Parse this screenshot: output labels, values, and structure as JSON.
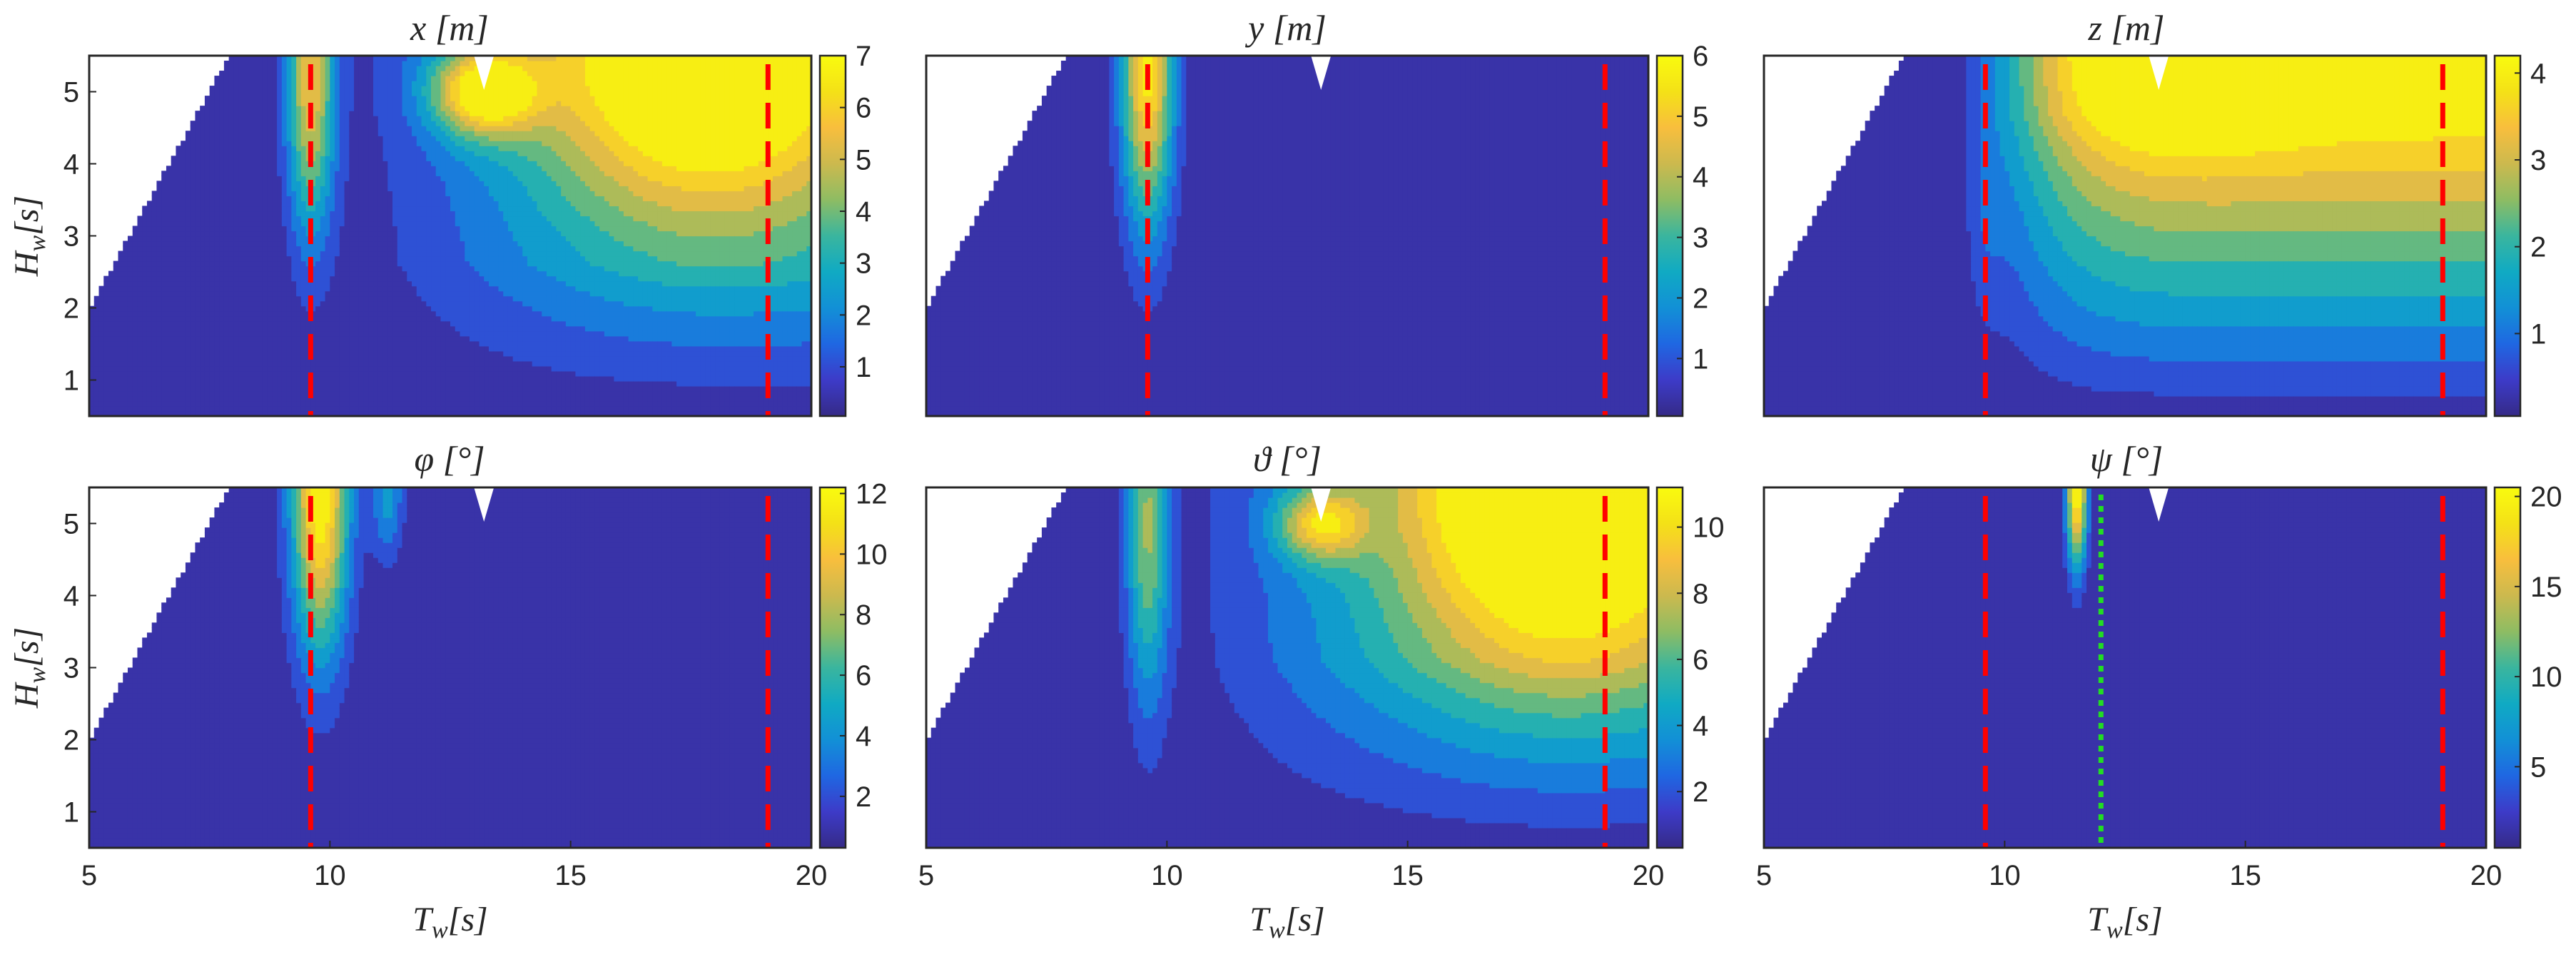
{
  "chart_data": [
    {
      "type": "contour",
      "id": "x",
      "title": "x [m]",
      "ylabel": "H_w[s]",
      "xlabel": "",
      "xlim": [
        5,
        20
      ],
      "ylim": [
        0.5,
        5.5
      ],
      "xticks": [],
      "yticks": [
        "1",
        "2",
        "3",
        "4",
        "5"
      ],
      "colorbar": {
        "min": 0.05,
        "max": 7,
        "ticks": [
          "1",
          "2",
          "3",
          "4",
          "5",
          "6",
          "7"
        ]
      },
      "peaks": [
        {
          "x": 9.6,
          "y": 5.2,
          "value": 5.4,
          "sx": 0.5,
          "sy": 2.2
        },
        {
          "x": 13.2,
          "y": 5.0,
          "value": 5.5,
          "sx": 1.1,
          "sy": 0.6
        },
        {
          "x": 17.8,
          "y": 5.6,
          "value": 7.0,
          "sx": 3.6,
          "sy": 2.3
        }
      ],
      "ramp": {
        "value": 1.8,
        "xgrow": 5.2,
        "ygrow": 1.8
      },
      "dashed_lines": [
        9.6,
        19.1
      ],
      "dotted_lines": []
    },
    {
      "type": "contour",
      "id": "y",
      "title": "y [m]",
      "ylabel": "",
      "xlabel": "",
      "xlim": [
        5,
        20
      ],
      "ylim": [
        0.5,
        5.5
      ],
      "xticks": [],
      "yticks": [],
      "colorbar": {
        "min": 0.05,
        "max": 6,
        "ticks": [
          "1",
          "2",
          "3",
          "4",
          "5",
          "6"
        ]
      },
      "peaks": [
        {
          "x": 9.6,
          "y": 5.4,
          "value": 5.6,
          "sx": 0.55,
          "sy": 2.3
        }
      ],
      "ramp": {
        "value": 0,
        "xgrow": 5.0,
        "ygrow": 2.0
      },
      "dashed_lines": [
        9.6,
        19.1
      ],
      "dotted_lines": []
    },
    {
      "type": "contour",
      "id": "z",
      "title": "z [m]",
      "ylabel": "",
      "xlabel": "",
      "xlim": [
        5,
        20
      ],
      "ylim": [
        0.5,
        5.5
      ],
      "xticks": [],
      "yticks": [],
      "colorbar": {
        "min": 0.05,
        "max": 4.2,
        "ticks": [
          "1",
          "2",
          "3",
          "4"
        ]
      },
      "peaks": [
        {
          "x": 13.5,
          "y": 5.6,
          "value": 1.4,
          "sx": 2.6,
          "sy": 1.2
        },
        {
          "x": 9.6,
          "y": 3.2,
          "value": 0.4,
          "sx": 0.4,
          "sy": 1.5
        }
      ],
      "ramp": {
        "value": 3.1,
        "xgrow": 2.4,
        "ygrow": 3.4
      },
      "dashed_lines": [
        9.6,
        19.1
      ],
      "dotted_lines": []
    },
    {
      "type": "contour",
      "id": "phi",
      "title": "φ [°]",
      "ylabel": "H_w[s]",
      "xlabel": "T_w[s]",
      "xlim": [
        5,
        20
      ],
      "ylim": [
        0.5,
        5.5
      ],
      "xticks": [
        "5",
        "10",
        "15",
        "20"
      ],
      "yticks": [
        "1",
        "2",
        "3",
        "4",
        "5"
      ],
      "colorbar": {
        "min": 0.3,
        "max": 12.2,
        "ticks": [
          "2",
          "4",
          "6",
          "8",
          "10",
          "12"
        ]
      },
      "peaks": [
        {
          "x": 9.8,
          "y": 5.4,
          "value": 11.8,
          "sx": 0.6,
          "sy": 2.2
        },
        {
          "x": 11.2,
          "y": 5.4,
          "value": 4.0,
          "sx": 0.35,
          "sy": 0.9
        }
      ],
      "ramp": {
        "value": 0,
        "xgrow": 5.0,
        "ygrow": 2.0
      },
      "dashed_lines": [
        9.6,
        19.1
      ],
      "dotted_lines": []
    },
    {
      "type": "contour",
      "id": "theta",
      "title": "ϑ [°]",
      "ylabel": "",
      "xlabel": "T_w[s]",
      "xlim": [
        5,
        20
      ],
      "ylim": [
        0.5,
        5.5
      ],
      "xticks": [
        "5",
        "10",
        "15",
        "20"
      ],
      "yticks": [],
      "colorbar": {
        "min": 0.3,
        "max": 11.2,
        "ticks": [
          "2",
          "4",
          "6",
          "8",
          "10"
        ]
      },
      "peaks": [
        {
          "x": 9.6,
          "y": 5.0,
          "value": 6.5,
          "sx": 0.45,
          "sy": 2.5
        },
        {
          "x": 13.2,
          "y": 5.0,
          "value": 6.5,
          "sx": 0.9,
          "sy": 0.5
        },
        {
          "x": 18.2,
          "y": 5.6,
          "value": 11.0,
          "sx": 3.3,
          "sy": 2.6
        }
      ],
      "ramp": {
        "value": 3.5,
        "xgrow": 4.8,
        "ygrow": 2.2
      },
      "dashed_lines": [
        19.1
      ],
      "dotted_lines": []
    },
    {
      "type": "contour",
      "id": "psi",
      "title": "ψ [°]",
      "ylabel": "",
      "xlabel": "T_w[s]",
      "xlim": [
        5,
        20
      ],
      "ylim": [
        0.5,
        5.5
      ],
      "xticks": [
        "5",
        "10",
        "15",
        "20"
      ],
      "yticks": [],
      "colorbar": {
        "min": 0.5,
        "max": 20.5,
        "ticks": [
          "5",
          "10",
          "15",
          "20"
        ]
      },
      "peaks": [
        {
          "x": 11.5,
          "y": 5.5,
          "value": 20,
          "sx": 0.22,
          "sy": 1.1
        },
        {
          "x": 9.8,
          "y": 5.5,
          "value": 1.5,
          "sx": 0.8,
          "sy": 1.0
        }
      ],
      "ramp": {
        "value": 0,
        "xgrow": 5.0,
        "ygrow": 2.0
      },
      "dashed_lines": [
        9.6,
        19.1
      ],
      "dotted_lines": [
        12.0
      ]
    }
  ],
  "colors": {
    "dashed_line": "#ff0000",
    "dotted_line": "#22dd22",
    "axis": "#262626",
    "parula": [
      "#352a87",
      "#3d3bc8",
      "#1f67e2",
      "#1290d6",
      "#10aac3",
      "#3ab59e",
      "#8ebc63",
      "#ccb94e",
      "#f8be3d",
      "#f4e117",
      "#f9fb0e"
    ]
  }
}
